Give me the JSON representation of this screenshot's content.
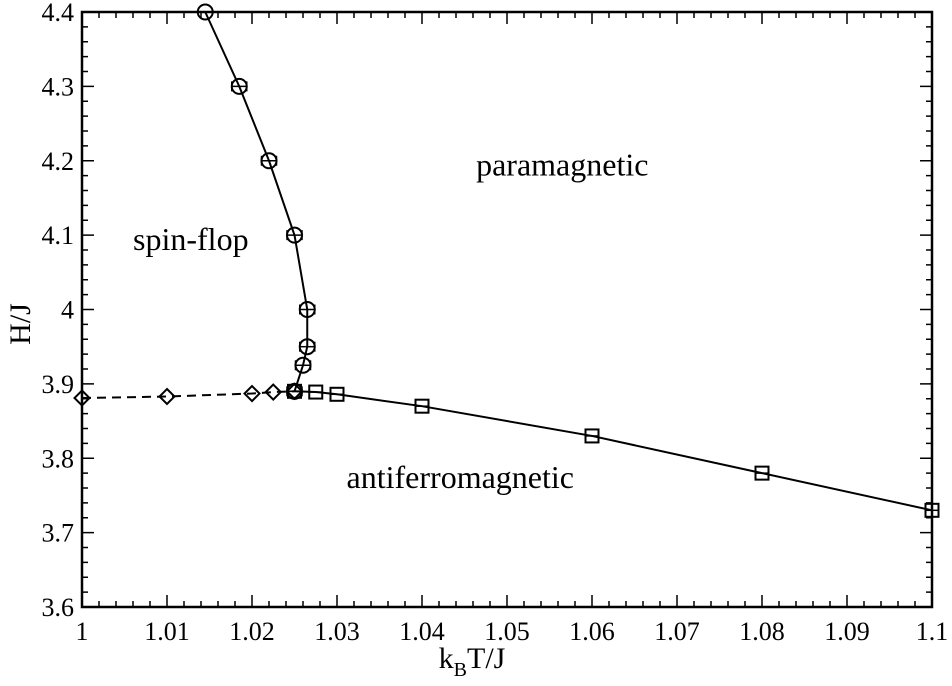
{
  "chart_data": {
    "type": "scatter",
    "title": "",
    "xlabel": {
      "base": "k",
      "sub": "B",
      "rest": "T/J"
    },
    "ylabel": "H/J",
    "xlim": [
      1.0,
      1.1
    ],
    "ylim": [
      3.6,
      4.4
    ],
    "xticks": [
      "1",
      "1.01",
      "1.02",
      "1.03",
      "1.04",
      "1.05",
      "1.06",
      "1.07",
      "1.08",
      "1.09",
      "1.1"
    ],
    "yticks": [
      "3.6",
      "3.7",
      "3.8",
      "3.9",
      "4",
      "4.1",
      "4.2",
      "4.3",
      "4.4"
    ],
    "grid": false,
    "series": [
      {
        "marker": "circle",
        "line": "solid",
        "points": [
          [
            1.0145,
            4.4
          ],
          [
            1.0185,
            4.3
          ],
          [
            1.022,
            4.2
          ],
          [
            1.025,
            4.1
          ],
          [
            1.0265,
            4.0
          ],
          [
            1.0265,
            3.95
          ],
          [
            1.026,
            3.925
          ],
          [
            1.025,
            3.89
          ]
        ],
        "xerr": [
          0,
          0.0008,
          0.0008,
          0.0008,
          0.0006,
          0.0006,
          0.0006,
          0.0005
        ]
      },
      {
        "marker": "diamond",
        "line": "dashed",
        "points": [
          [
            1.0,
            3.881
          ],
          [
            1.01,
            3.883
          ],
          [
            1.02,
            3.887
          ],
          [
            1.0225,
            3.889
          ],
          [
            1.025,
            3.89
          ]
        ]
      },
      {
        "marker": "square",
        "line": "solid",
        "points": [
          [
            1.025,
            3.89
          ],
          [
            1.0275,
            3.889
          ],
          [
            1.03,
            3.886
          ],
          [
            1.04,
            3.87
          ],
          [
            1.06,
            3.83
          ],
          [
            1.08,
            3.78
          ],
          [
            1.1,
            3.73
          ]
        ]
      }
    ],
    "annotations": [
      {
        "text": "paramagnetic",
        "x": 1.0565,
        "y": 4.18
      },
      {
        "text": "spin-flop",
        "x": 1.0128,
        "y": 4.08
      },
      {
        "text": "antiferromagnetic",
        "x": 1.0445,
        "y": 3.76
      }
    ]
  }
}
